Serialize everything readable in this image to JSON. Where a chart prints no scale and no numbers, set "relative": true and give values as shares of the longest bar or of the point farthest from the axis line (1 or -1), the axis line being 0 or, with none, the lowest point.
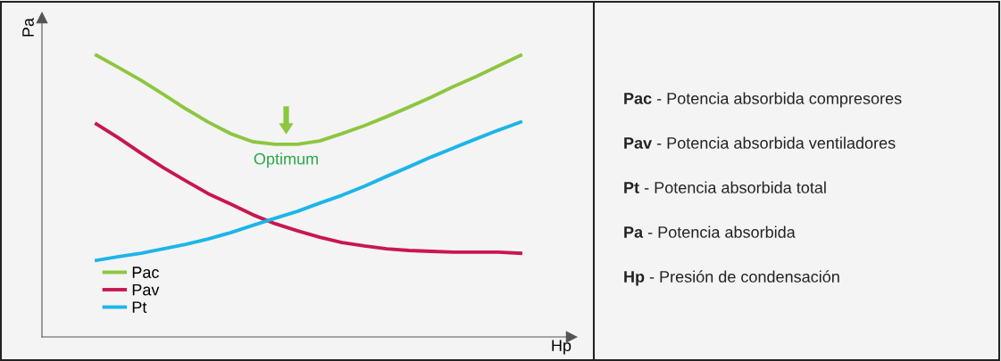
{
  "chart_data": {
    "type": "line",
    "relative": true,
    "xlabel": "Hp",
    "ylabel": "Pa",
    "categories": [
      null,
      null,
      null,
      null,
      null,
      null,
      null,
      null,
      null,
      null,
      null,
      null,
      null,
      null,
      null,
      null,
      null,
      null,
      null,
      null
    ],
    "series": [
      {
        "name": "Pac",
        "color": "#8dc63f",
        "values": [
          1.0,
          0.956,
          0.911,
          0.861,
          0.81,
          0.763,
          0.722,
          0.693,
          0.684,
          0.684,
          0.696,
          0.722,
          0.75,
          0.782,
          0.816,
          0.851,
          0.889,
          0.924,
          0.962,
          1.0
        ]
      },
      {
        "name": "Pav",
        "color": "#c8174f",
        "values": [
          0.756,
          0.706,
          0.652,
          0.601,
          0.554,
          0.509,
          0.472,
          0.434,
          0.402,
          0.377,
          0.354,
          0.335,
          0.323,
          0.313,
          0.307,
          0.304,
          0.301,
          0.301,
          0.301,
          0.297
        ]
      },
      {
        "name": "Pt",
        "color": "#1cb5e8",
        "values": [
          0.272,
          0.285,
          0.297,
          0.313,
          0.329,
          0.348,
          0.37,
          0.396,
          0.421,
          0.446,
          0.475,
          0.503,
          0.535,
          0.57,
          0.604,
          0.639,
          0.671,
          0.703,
          0.734,
          0.763
        ]
      }
    ],
    "annotations": [
      "Optimum",
      "Pac - Potencia absorbida compresores",
      "Pav - Potencia absorbida ventiladores",
      "Pt - Potencia absorbida total",
      "Pa - Potencia absorbida",
      "Hp - Presión de condensación"
    ],
    "legend": "bottom left",
    "grid": false,
    "marker": "none",
    "line_style": "solid"
  }
}
